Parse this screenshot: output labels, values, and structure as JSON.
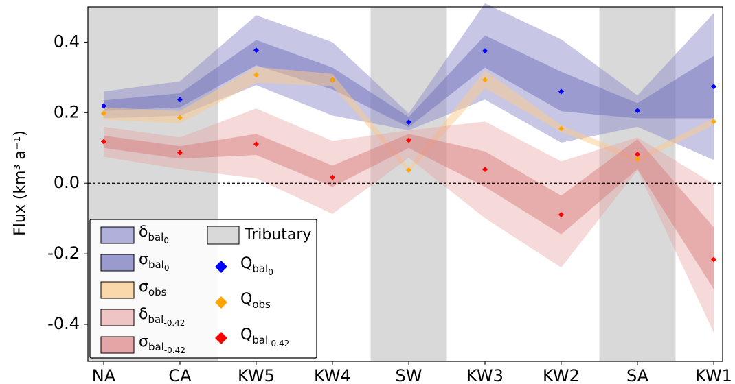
{
  "chart_data": {
    "type": "scatter",
    "ylabel": "Flux (km³ a⁻¹)",
    "categories": [
      "NA",
      "CA",
      "KW5",
      "KW4",
      "SW",
      "KW3",
      "KW2",
      "SA",
      "KW1"
    ],
    "xlim": [
      -0.207,
      8.117
    ],
    "ylim": [
      -0.505,
      0.5
    ],
    "yticks": [
      0.4,
      0.2,
      {
        "value": 0,
        "label": "0.0"
      },
      -0.2,
      -0.4
    ],
    "zero_line": true,
    "tributary": {
      "name": "Tributary",
      "color": "#d9d9d9",
      "flags": [
        true,
        true,
        false,
        false,
        true,
        false,
        false,
        true,
        false
      ]
    },
    "bands": [
      {
        "symbol": "δ",
        "subscript": "bal",
        "subsubscript": "0",
        "color": "#9090cc",
        "opacity": 0.5,
        "upper": [
          0.26,
          0.289,
          0.476,
          0.4,
          0.198,
          0.51,
          0.408,
          0.249,
          0.482
        ],
        "lower": [
          0.184,
          0.192,
          0.278,
          0.192,
          0.15,
          0.237,
          0.115,
          0.16,
          0.066
        ]
      },
      {
        "symbol": "σ",
        "subscript": "bal",
        "subsubscript": "0",
        "color": "#7070bb",
        "opacity": 0.5,
        "upper": [
          0.235,
          0.255,
          0.406,
          0.328,
          0.188,
          0.419,
          0.316,
          0.227,
          0.361
        ],
        "lower": [
          0.205,
          0.215,
          0.334,
          0.266,
          0.159,
          0.328,
          0.204,
          0.184,
          0.184
        ]
      },
      {
        "symbol": "σ",
        "subscript": "obs",
        "color": "#fbc98a",
        "opacity": 0.5,
        "upper": [
          0.215,
          0.205,
          0.33,
          0.31,
          0.045,
          0.32,
          0.165,
          0.075,
          0.185
        ],
        "lower": [
          0.18,
          0.17,
          0.285,
          0.275,
          0.03,
          0.27,
          0.145,
          0.06,
          0.165
        ]
      },
      {
        "symbol": "δ",
        "subscript": "bal",
        "subsubscript": "-0.42",
        "color": "#e8a0a0",
        "opacity": 0.4,
        "upper": [
          0.16,
          0.13,
          0.212,
          0.12,
          0.15,
          0.175,
          0.062,
          0.13,
          -0.002
        ],
        "lower": [
          0.075,
          0.04,
          0.014,
          -0.087,
          0.072,
          -0.099,
          -0.239,
          0.037,
          -0.423
        ]
      },
      {
        "symbol": "σ",
        "subscript": "bal",
        "subsubscript": "-0.42",
        "color": "#d88080",
        "opacity": 0.5,
        "upper": [
          0.135,
          0.105,
          0.14,
          0.05,
          0.14,
          0.09,
          -0.035,
          0.125,
          -0.125
        ],
        "lower": [
          0.1,
          0.07,
          0.08,
          -0.01,
          0.1,
          -0.01,
          -0.145,
          0.04,
          -0.3
        ]
      }
    ],
    "series": [
      {
        "symbol": "Q",
        "subscript": "bal",
        "subsubscript": "0",
        "color": "#0000ff",
        "values": [
          0.219,
          0.237,
          0.377,
          0.293,
          0.173,
          0.375,
          0.26,
          0.206,
          0.274
        ]
      },
      {
        "symbol": "Q",
        "subscript": "obs",
        "color": "#ffa500",
        "values": [
          0.198,
          0.186,
          0.307,
          0.293,
          0.037,
          0.293,
          0.155,
          0.068,
          0.175
        ]
      },
      {
        "symbol": "Q",
        "subscript": "bal",
        "subsubscript": "-0.42",
        "color": "#ff0000",
        "values": [
          0.118,
          0.087,
          0.111,
          0.017,
          0.122,
          0.039,
          -0.089,
          0.082,
          -0.216
        ]
      }
    ]
  }
}
